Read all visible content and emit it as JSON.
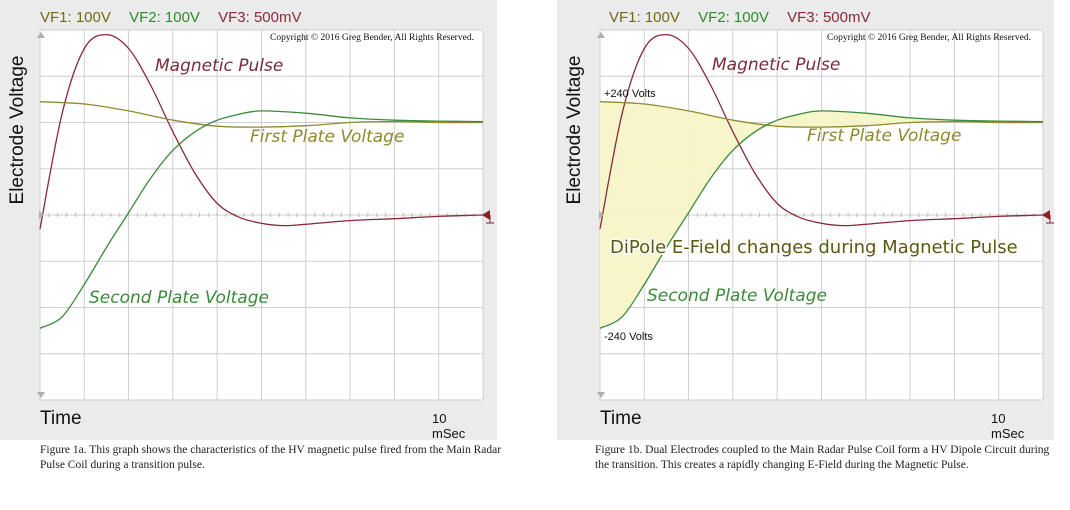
{
  "figures": [
    {
      "channels": [
        {
          "label": "VF1: 100V",
          "color": "#6e6a1a"
        },
        {
          "label": "VF2: 100V",
          "color": "#2f8a2f"
        },
        {
          "label": "VF3: 500mV",
          "color": "#8a2a3c"
        }
      ],
      "y_label": "Electrode Voltage",
      "x_label": "Time",
      "timebase": "10 mSec",
      "copyright": "Copyright © 2016 Greg Bender, All Rights Reserved.",
      "caption": "Figure 1a. This graph shows the characteristics of the HV magnetic pulse fired from the Main Radar Pulse Coil during a transition pulse."
    },
    {
      "channels": [
        {
          "label": "VF1: 100V",
          "color": "#6e6a1a"
        },
        {
          "label": "VF2: 100V",
          "color": "#2f8a2f"
        },
        {
          "label": "VF3: 500mV",
          "color": "#8a2a3c"
        }
      ],
      "y_label": "Electrode Voltage",
      "x_label": "Time",
      "timebase": "10 mSec",
      "copyright": "Copyright © 2016 Greg Bender, All Rights Reserved.",
      "caption": "Figure 1b. Dual Electrodes coupled to the Main Radar Pulse Coil form a HV Dipole Circuit during the transition. This creates a rapidly changing E-Field during the Magnetic Pulse.",
      "annotations": {
        "top_level": "+240 Volts",
        "bottom_level": "-240 Volts",
        "field": "DiPole E-Field changes during Magnetic Pulse"
      }
    }
  ],
  "chart_data": [
    {
      "type": "line",
      "x_unit": "divisions",
      "y_unit": "divisions",
      "xlim": [
        0,
        10
      ],
      "ylim": [
        -4,
        4
      ],
      "grid": true,
      "series": [
        {
          "name": "Magnetic Pulse",
          "color": "#8a2a3c",
          "x": [
            0,
            0.5,
            1.0,
            1.5,
            2.0,
            2.5,
            3.0,
            3.5,
            4.0,
            4.5,
            5.0,
            5.5,
            6.0,
            7.0,
            8.0,
            9.0,
            10.0
          ],
          "y": [
            -0.3,
            2.2,
            3.6,
            3.9,
            3.6,
            2.8,
            1.8,
            0.9,
            0.25,
            -0.05,
            -0.18,
            -0.23,
            -0.2,
            -0.12,
            -0.08,
            -0.03,
            0.0
          ]
        },
        {
          "name": "First Plate Voltage",
          "color": "#8e8a30",
          "x": [
            0,
            1,
            2,
            3,
            4,
            5,
            6,
            7,
            8,
            9,
            10
          ],
          "y": [
            2.45,
            2.4,
            2.25,
            2.05,
            1.92,
            1.9,
            1.93,
            2.0,
            2.02,
            2.0,
            2.0
          ]
        },
        {
          "name": "Second Plate Voltage",
          "color": "#3a8a3a",
          "x": [
            0,
            0.5,
            1.0,
            1.5,
            2.0,
            2.5,
            3.0,
            3.5,
            4.0,
            4.5,
            5.0,
            6.0,
            7.0,
            8.0,
            9.0,
            10.0
          ],
          "y": [
            -2.45,
            -2.2,
            -1.5,
            -0.7,
            0.05,
            0.8,
            1.4,
            1.8,
            2.05,
            2.18,
            2.25,
            2.2,
            2.1,
            2.05,
            2.03,
            2.02
          ]
        }
      ]
    },
    {
      "type": "area",
      "x_unit": "divisions",
      "y_unit": "divisions",
      "xlim": [
        0,
        10
      ],
      "ylim": [
        -4,
        4
      ],
      "grid": true,
      "series": [
        {
          "name": "Magnetic Pulse",
          "color": "#8a2a3c",
          "x": [
            0,
            0.5,
            1.0,
            1.5,
            2.0,
            2.5,
            3.0,
            3.5,
            4.0,
            4.5,
            5.0,
            5.5,
            6.0,
            7.0,
            8.0,
            9.0,
            10.0
          ],
          "y": [
            -0.3,
            2.2,
            3.6,
            3.9,
            3.6,
            2.8,
            1.8,
            0.9,
            0.25,
            -0.05,
            -0.18,
            -0.23,
            -0.2,
            -0.12,
            -0.08,
            -0.03,
            0.0
          ]
        },
        {
          "name": "First Plate Voltage",
          "color": "#8e8a30",
          "x": [
            0,
            1,
            2,
            3,
            4,
            5,
            6,
            7,
            8,
            9,
            10
          ],
          "y": [
            2.45,
            2.4,
            2.25,
            2.05,
            1.92,
            1.9,
            1.93,
            2.0,
            2.02,
            2.0,
            2.0
          ]
        },
        {
          "name": "Second Plate Voltage",
          "color": "#3a8a3a",
          "x": [
            0,
            0.5,
            1.0,
            1.5,
            2.0,
            2.5,
            3.0,
            3.5,
            4.0,
            4.5,
            5.0,
            6.0,
            7.0,
            8.0,
            9.0,
            10.0
          ],
          "y": [
            -2.45,
            -2.2,
            -1.5,
            -0.7,
            0.05,
            0.8,
            1.4,
            1.8,
            2.05,
            2.18,
            2.25,
            2.2,
            2.1,
            2.05,
            2.03,
            2.02
          ]
        }
      ],
      "fill_between": [
        "First Plate Voltage",
        "Second Plate Voltage"
      ],
      "fill_color": "#f7f6c8"
    }
  ]
}
